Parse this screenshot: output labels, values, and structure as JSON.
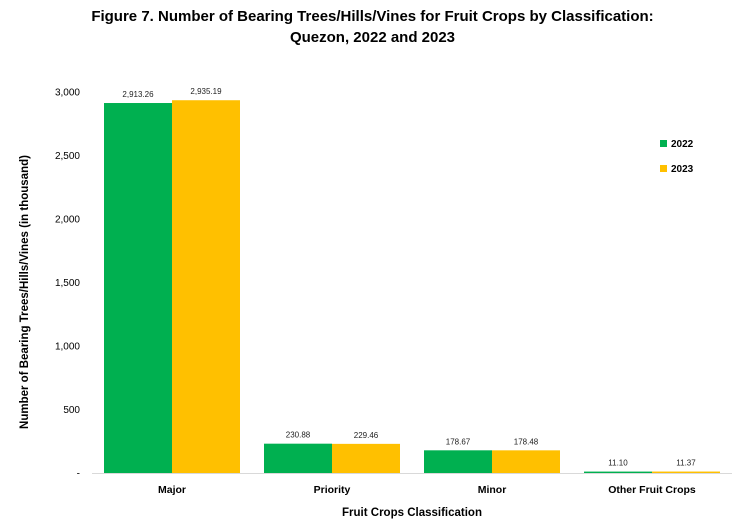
{
  "chart_data": {
    "type": "bar",
    "title": "Figure 7. Number of Bearing Trees/Hills/Vines for Fruit Crops by Classification:",
    "subtitle": "Quezon, 2022 and 2023",
    "xlabel": "Fruit Crops Classification",
    "ylabel": "Number of Bearing Trees/Hills/Vines (in thousand)",
    "categories": [
      "Major",
      "Priority",
      "Minor",
      "Other Fruit Crops"
    ],
    "series": [
      {
        "name": "2022",
        "color": "#00b050",
        "values": [
          2913.26,
          230.88,
          178.67,
          11.1
        ],
        "labels": [
          "2,913.26",
          "230.88",
          "178.67",
          "11.10"
        ]
      },
      {
        "name": "2023",
        "color": "#ffc000",
        "values": [
          2935.19,
          229.46,
          178.48,
          11.37
        ],
        "labels": [
          "2,935.19",
          "229.46",
          "178.48",
          "11.37"
        ]
      }
    ],
    "ylim": [
      0,
      3000
    ],
    "yticks": [
      0,
      500,
      1000,
      1500,
      2000,
      2500,
      3000
    ],
    "ytick_labels": [
      "-",
      "500",
      "1,000",
      "1,500",
      "2,000",
      "2,500",
      "3,000"
    ],
    "grid": false,
    "legend_position": "right"
  }
}
